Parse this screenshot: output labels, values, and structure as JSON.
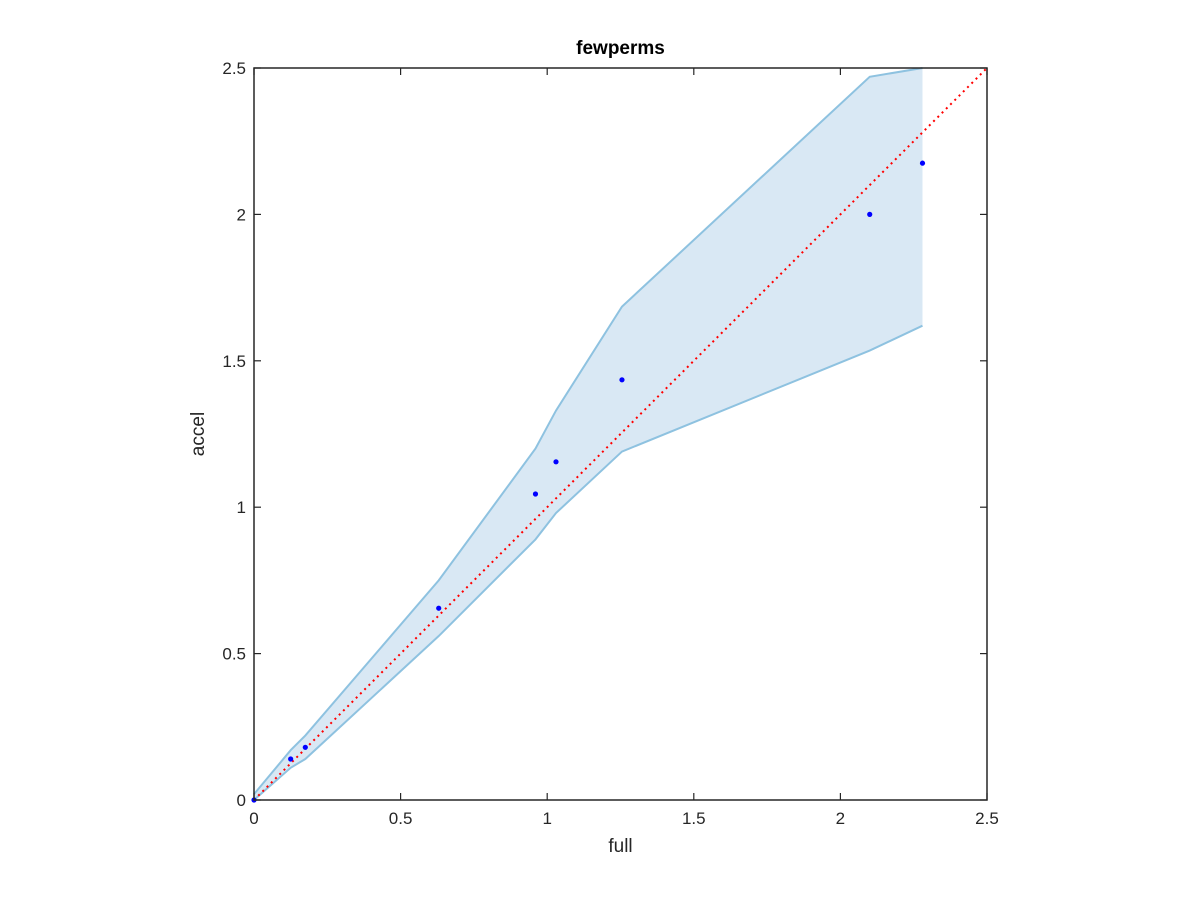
{
  "chart_data": {
    "type": "scatter",
    "title": "fewperms",
    "xlabel": "full",
    "ylabel": "accel",
    "xlim": [
      0,
      2.5
    ],
    "ylim": [
      0,
      2.5
    ],
    "xticks": [
      0,
      0.5,
      1,
      1.5,
      2,
      2.5
    ],
    "yticks": [
      0,
      0.5,
      1,
      1.5,
      2,
      2.5
    ],
    "xtick_labels": [
      "0",
      "0.5",
      "1",
      "1.5",
      "2",
      "2.5"
    ],
    "ytick_labels": [
      "0",
      "0.5",
      "1",
      "1.5",
      "2",
      "2.5"
    ],
    "grid": false,
    "points": {
      "x": [
        0,
        0.125,
        0.175,
        0.63,
        0.96,
        1.03,
        1.255,
        2.1,
        2.28
      ],
      "y": [
        0,
        0.14,
        0.18,
        0.655,
        1.045,
        1.155,
        1.435,
        2.0,
        2.175
      ]
    },
    "band": {
      "x": [
        0,
        0.125,
        0.175,
        0.63,
        0.96,
        1.03,
        1.255,
        2.1,
        2.28
      ],
      "upper": [
        0.02,
        0.17,
        0.22,
        0.75,
        1.2,
        1.33,
        1.685,
        2.47,
        2.5
      ],
      "lower": [
        0,
        0.11,
        0.14,
        0.56,
        0.89,
        0.98,
        1.19,
        1.535,
        1.62
      ]
    },
    "reference_line": {
      "x": [
        0,
        2.5
      ],
      "y": [
        0,
        2.5
      ],
      "style": "dotted"
    },
    "colors": {
      "points": "#0000ff",
      "band_fill": "#d9e8f4",
      "band_edge": "#8ec2e0",
      "reference_line": "#ff0000",
      "axes": "#262626"
    }
  }
}
